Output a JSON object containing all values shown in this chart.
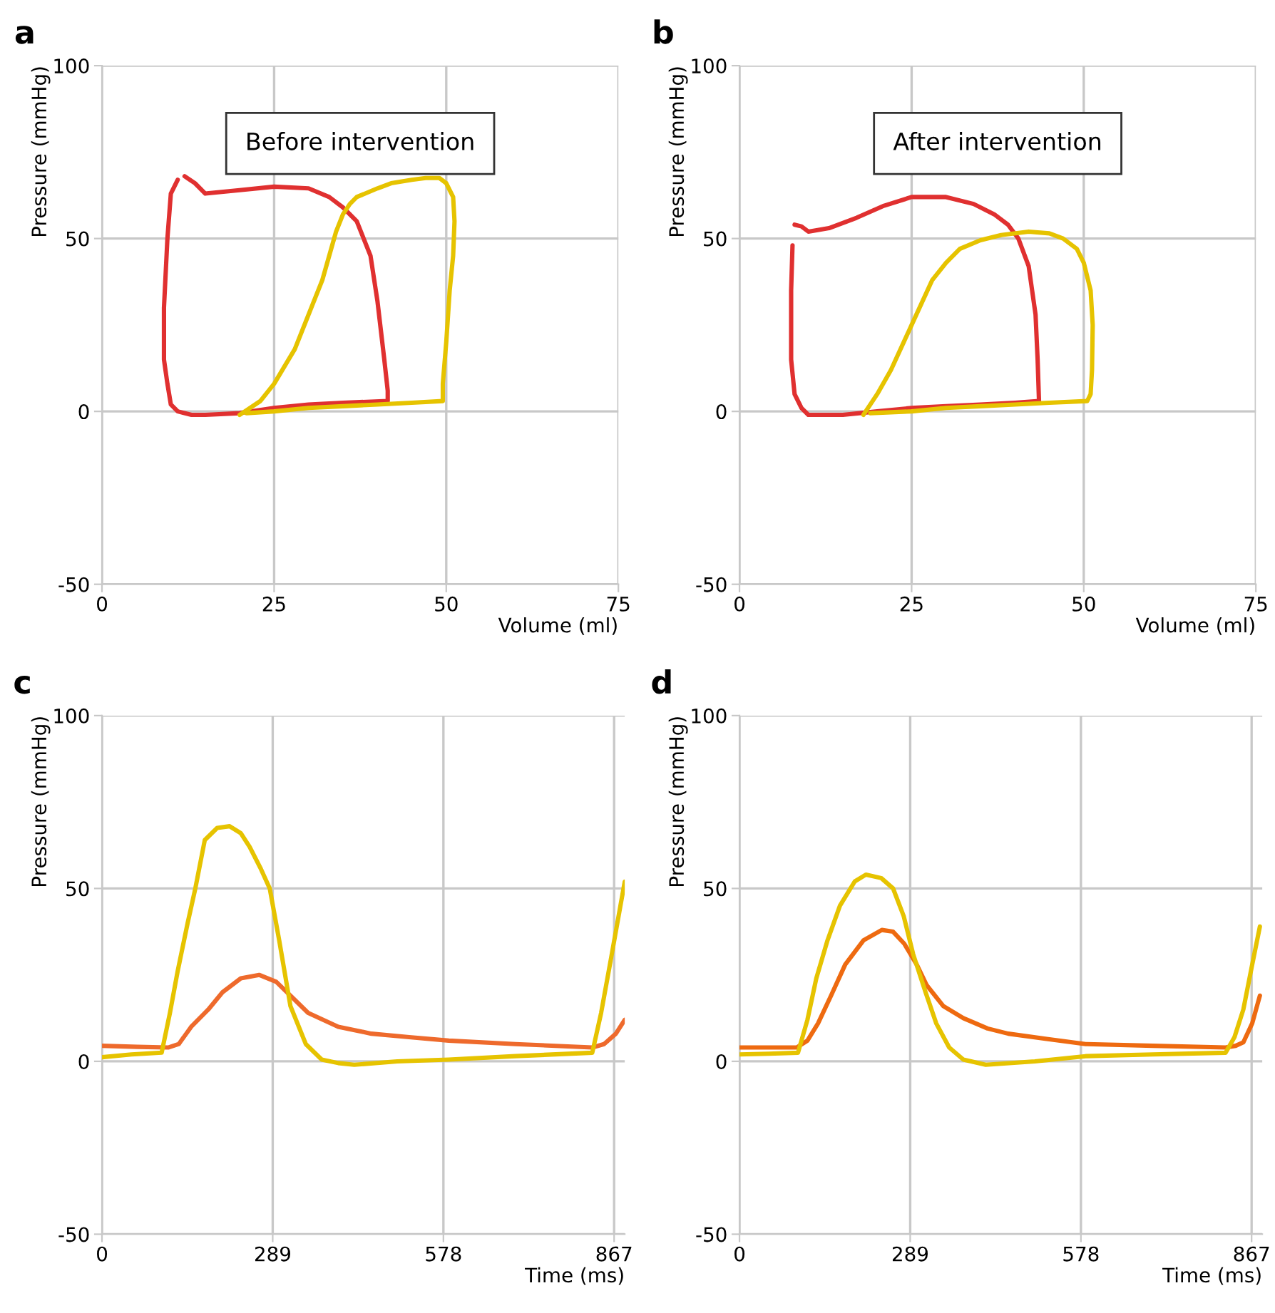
{
  "chart_data": [
    {
      "type": "line",
      "annotations": [
        "a",
        "Before intervention"
      ],
      "xlabel": "Volume (ml)",
      "ylabel": "Pressure (mmHg)",
      "xlim": [
        0,
        75
      ],
      "ylim": [
        -50,
        100
      ],
      "xticks": [
        0,
        25,
        50,
        75
      ],
      "yticks": [
        -50,
        0,
        50,
        100
      ],
      "grid": true,
      "series": [
        {
          "color": "#e03030",
          "x": [
            12,
            13.5,
            15,
            20,
            25,
            30,
            33,
            35,
            37,
            39,
            40,
            41,
            41.5,
            41.5,
            35,
            30,
            25,
            20,
            15,
            13,
            11,
            10,
            9.5,
            9,
            9,
            9.5,
            10,
            11
          ],
          "values": [
            68,
            66,
            63,
            64,
            65,
            64.5,
            62,
            59,
            55,
            45,
            32,
            15,
            6,
            3,
            2.5,
            2,
            1,
            -0.5,
            -1,
            -1,
            0,
            2,
            8,
            15,
            30,
            50,
            63,
            67
          ]
        },
        {
          "color": "#e6c300",
          "x": [
            20,
            23,
            25,
            28,
            30,
            32,
            33,
            34,
            35,
            36,
            37,
            40,
            42,
            45,
            47,
            49,
            50,
            51,
            51.2,
            51,
            50.5,
            50,
            49.5,
            49.5,
            45,
            40,
            35,
            30,
            25,
            21
          ],
          "values": [
            -1,
            3,
            8,
            18,
            28,
            38,
            45,
            52,
            57,
            60,
            62,
            64.5,
            66,
            67,
            67.5,
            67.5,
            66,
            62,
            55,
            45,
            35,
            20,
            8,
            3,
            2.5,
            2,
            1.5,
            1,
            0,
            -0.5
          ]
        }
      ]
    },
    {
      "type": "line",
      "annotations": [
        "b",
        "After intervention"
      ],
      "xlabel": "Volume (ml)",
      "ylabel": "Pressure (mmHg)",
      "xlim": [
        0,
        75
      ],
      "ylim": [
        -50,
        100
      ],
      "xticks": [
        0,
        25,
        50,
        75
      ],
      "yticks": [
        -50,
        0,
        50,
        100
      ],
      "grid": true,
      "series": [
        {
          "color": "#e03030",
          "x": [
            8,
            9,
            10,
            13,
            17,
            21,
            25,
            30,
            34,
            37,
            39,
            40.5,
            42,
            43,
            43.3,
            43.5,
            40,
            35,
            30,
            25,
            20,
            15,
            12,
            10,
            9,
            8,
            7.5,
            7.5,
            7.7
          ],
          "values": [
            54,
            53.5,
            52,
            53,
            56,
            59.5,
            62,
            62,
            60,
            57,
            54,
            50,
            42,
            28,
            15,
            3,
            2.5,
            2,
            1.5,
            1,
            0,
            -1,
            -1,
            -1,
            1,
            5,
            15,
            35,
            48
          ]
        },
        {
          "color": "#e6c300",
          "x": [
            18,
            20,
            22,
            25,
            28,
            30,
            32,
            35,
            38,
            42,
            45,
            47,
            49,
            50,
            51,
            51.3,
            51.2,
            51,
            50.5,
            45,
            40,
            35,
            30,
            25,
            19
          ],
          "values": [
            -1,
            5,
            12,
            25,
            38,
            43,
            47,
            49.5,
            51,
            52,
            51.5,
            50,
            47,
            43,
            35,
            25,
            12,
            5,
            3,
            2.5,
            2,
            1.5,
            1,
            0,
            -0.5
          ]
        }
      ]
    },
    {
      "type": "line",
      "annotations": [
        "c"
      ],
      "xlabel": "Time (ms)",
      "ylabel": "Pressure (mmHg)",
      "xlim": [
        0,
        885
      ],
      "ylim": [
        -50,
        100
      ],
      "xticks": [
        0,
        289,
        578,
        867
      ],
      "yticks": [
        -50,
        0,
        50,
        100
      ],
      "grid": true,
      "series": [
        {
          "color": "#ee6a2c",
          "x": [
            0,
            60,
            112,
            130,
            151,
            180,
            204,
            235,
            266,
            295,
            319,
            349,
            400,
            456,
            520,
            587,
            700,
            830,
            850,
            870,
            885
          ],
          "values": [
            4.5,
            4.2,
            4,
            5,
            10,
            15,
            20,
            24,
            25,
            23,
            19,
            14,
            10,
            8,
            7,
            6,
            5,
            4,
            5,
            8,
            12
          ]
        },
        {
          "color": "#e6c300",
          "x": [
            0,
            50,
            101,
            115,
            128,
            145,
            158,
            174,
            195,
            216,
            235,
            250,
            268,
            284,
            300,
            319,
            345,
            372,
            400,
            427,
            500,
            587,
            700,
            830,
            845,
            862,
            885
          ],
          "values": [
            1.2,
            2,
            2.5,
            14,
            26,
            40,
            50,
            64,
            67.5,
            68,
            66,
            62,
            56,
            50,
            35,
            16,
            5,
            0.5,
            -0.5,
            -1,
            0,
            0.5,
            1.5,
            2.5,
            14,
            30,
            52
          ]
        }
      ]
    },
    {
      "type": "line",
      "annotations": [
        "d"
      ],
      "xlabel": "Time (ms)",
      "ylabel": "Pressure (mmHg)",
      "xlim": [
        0,
        885
      ],
      "ylim": [
        -50,
        100
      ],
      "xticks": [
        0,
        289,
        578,
        867
      ],
      "yticks": [
        -50,
        0,
        50,
        100
      ],
      "grid": true,
      "series": [
        {
          "color": "#ee6a10",
          "x": [
            0,
            50,
            97,
            115,
            133,
            155,
            179,
            210,
            241,
            260,
            279,
            300,
            317,
            345,
            379,
            420,
            455,
            520,
            586,
            700,
            823,
            840,
            853,
            868,
            881
          ],
          "values": [
            4,
            4,
            4,
            6,
            11,
            19,
            28,
            35,
            38,
            37.5,
            34,
            28,
            22,
            16,
            12.5,
            9.5,
            8,
            6.5,
            5,
            4.5,
            4,
            4.5,
            5.5,
            11,
            19
          ]
        },
        {
          "color": "#e6c300",
          "x": [
            0,
            50,
            99,
            115,
            130,
            149,
            170,
            195,
            214,
            240,
            260,
            278,
            294,
            315,
            333,
            355,
            379,
            417,
            500,
            586,
            700,
            823,
            838,
            853,
            868,
            881
          ],
          "values": [
            2,
            2.2,
            2.5,
            12,
            24,
            35,
            45,
            52,
            54,
            53,
            50,
            42,
            31,
            20,
            11,
            4,
            0.5,
            -1,
            0,
            1.5,
            2,
            2.5,
            7,
            15,
            28,
            39
          ]
        }
      ]
    }
  ]
}
